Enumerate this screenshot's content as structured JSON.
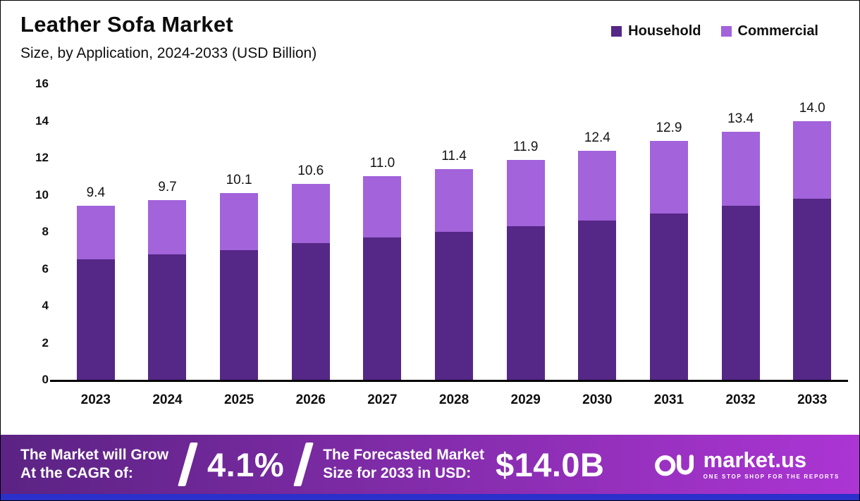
{
  "header": {
    "title": "Leather Sofa Market",
    "subtitle": "Size, by Application, 2024-2033 (USD Billion)"
  },
  "legend": [
    {
      "label": "Household",
      "color": "#552786"
    },
    {
      "label": "Commercial",
      "color": "#A263DB"
    }
  ],
  "chart_data": {
    "type": "bar",
    "stacked": true,
    "title": "Leather Sofa Market Size, by Application, 2024-2033 (USD Billion)",
    "categories": [
      "2023",
      "2024",
      "2025",
      "2026",
      "2027",
      "2028",
      "2029",
      "2030",
      "2031",
      "2032",
      "2033"
    ],
    "series": [
      {
        "name": "Household",
        "color": "#552786",
        "values": [
          6.5,
          6.8,
          7.0,
          7.4,
          7.7,
          8.0,
          8.3,
          8.6,
          9.0,
          9.4,
          9.8
        ]
      },
      {
        "name": "Commercial",
        "color": "#A263DB",
        "values": [
          2.9,
          2.9,
          3.1,
          3.2,
          3.3,
          3.4,
          3.6,
          3.8,
          3.9,
          4.0,
          4.2
        ]
      }
    ],
    "totals_labels": [
      "9.4",
      "9.7",
      "10.1",
      "10.6",
      "11.0",
      "11.4",
      "11.9",
      "12.4",
      "12.9",
      "13.4",
      "14.0"
    ],
    "ylim": [
      0,
      16
    ],
    "yticks": [
      0,
      2,
      4,
      6,
      8,
      10,
      12,
      14,
      16
    ],
    "grid": false,
    "legend_position": "top-right"
  },
  "footer": {
    "cagr_text_line1": "The Market will Grow",
    "cagr_text_line2": "At the CAGR of:",
    "cagr_value": "4.1%",
    "forecast_text_line1": "The Forecasted Market",
    "forecast_text_line2": "Size for 2033 in USD:",
    "forecast_value": "$14.0B",
    "brand": "market.us",
    "brand_tagline": "ONE STOP SHOP FOR THE REPORTS",
    "gradient": [
      "#5B2383",
      "#AC35D4"
    ],
    "bottom_strip_color": "#2A30C9"
  }
}
